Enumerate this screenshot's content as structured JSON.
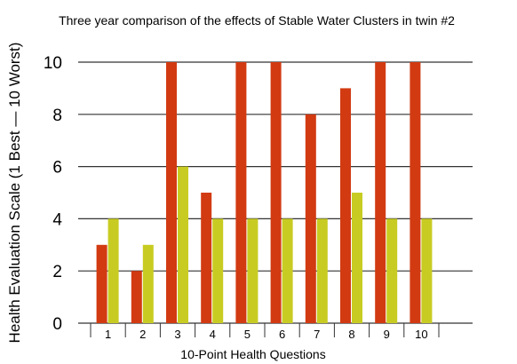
{
  "chart_data": {
    "type": "bar",
    "title": "Three year comparison of the effects of Stable Water Clusters in twin #2",
    "xlabel": "10-Point Health Questions",
    "ylabel": "Health Evaluation Scale (1 Best — 10 Worst)",
    "categories": [
      "1",
      "2",
      "3",
      "4",
      "5",
      "6",
      "7",
      "8",
      "9",
      "10"
    ],
    "series": [
      {
        "color": "#d23a12",
        "values": [
          3,
          2,
          10,
          5,
          10,
          10,
          8,
          9,
          10,
          10
        ]
      },
      {
        "color": "#c8cc22",
        "values": [
          4,
          3,
          6,
          4,
          4,
          4,
          4,
          5,
          4,
          4
        ]
      }
    ],
    "ylim": [
      0,
      10
    ],
    "yticks": [
      "0",
      "2",
      "4",
      "6",
      "8",
      "10"
    ],
    "grid": true,
    "legend": "none"
  }
}
